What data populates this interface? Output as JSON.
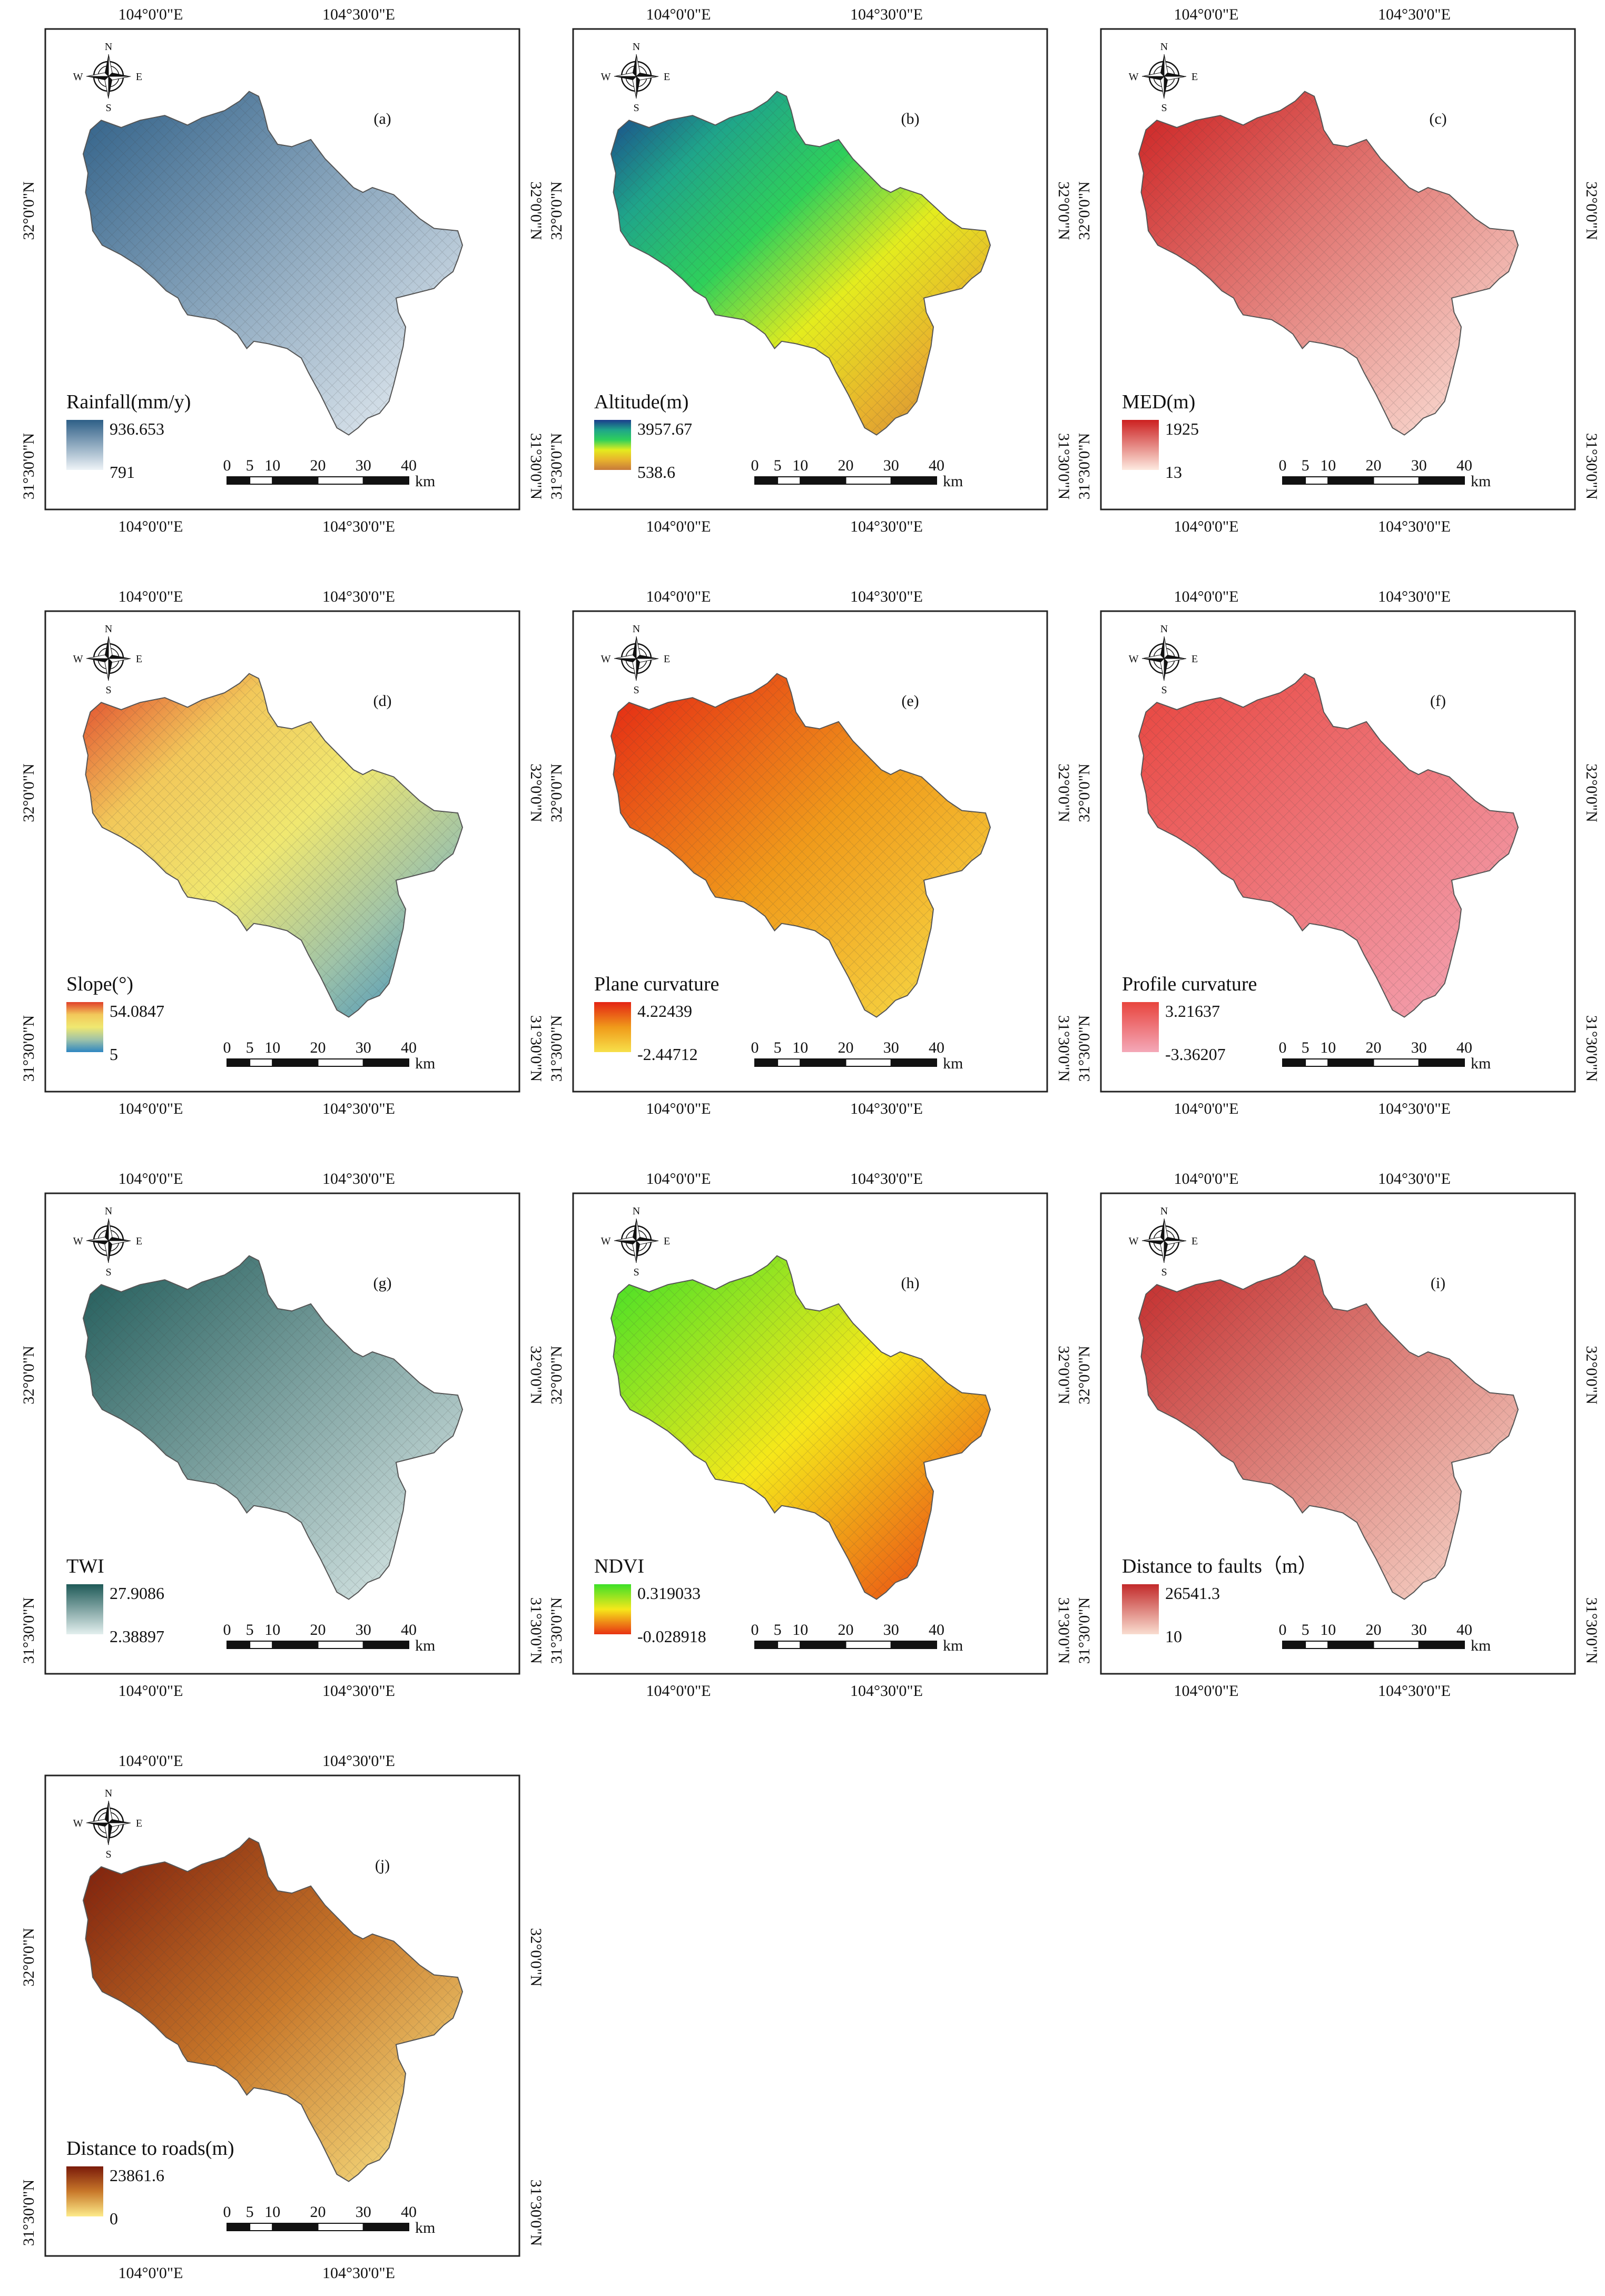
{
  "coord_labels": {
    "lon_left": "104°0'0\"E",
    "lon_right": "104°30'0\"E",
    "lat_top": "32°0'0\"N",
    "lat_bottom": "31°30'0\"N"
  },
  "compass": {
    "north": "N",
    "south": "S",
    "east": "E",
    "west": "W"
  },
  "scale_bar": {
    "ticks": [
      "0",
      "5",
      "10",
      "20",
      "30",
      "40"
    ],
    "unit": "km"
  },
  "panels": [
    {
      "letter": "(a)",
      "title": "Rainfall(mm/y)",
      "max": "936.653",
      "min": "791",
      "colors": [
        "#2e5f87",
        "#eef3f7"
      ]
    },
    {
      "letter": "(b)",
      "title": "Altitude(m)",
      "max": "3957.67",
      "min": "538.6",
      "colors": [
        "#1b3c8c",
        "#1fa58a",
        "#2fd05a",
        "#e4ec1e",
        "#e8b22d",
        "#c77a3a"
      ]
    },
    {
      "letter": "(c)",
      "title": "MED(m)",
      "max": "1925",
      "min": "13",
      "colors": [
        "#cc2020",
        "#fdeae0"
      ]
    },
    {
      "letter": "(d)",
      "title": "Slope(°)",
      "max": "54.0847",
      "min": "5",
      "colors": [
        "#e0402a",
        "#f2c85a",
        "#f0e870",
        "#9fc3a8",
        "#2e86c1"
      ]
    },
    {
      "letter": "(e)",
      "title": "Plane curvature",
      "max": "4.22439",
      "min": "-2.44712",
      "colors": [
        "#e42414",
        "#f09a1a",
        "#f7e04a"
      ]
    },
    {
      "letter": "(f)",
      "title": "Profile curvature",
      "max": "3.21637",
      "min": "-3.36207",
      "colors": [
        "#e8453e",
        "#f4a8b8"
      ]
    },
    {
      "letter": "(g)",
      "title": "TWI",
      "max": "27.9086",
      "min": "2.38897",
      "colors": [
        "#1f5a58",
        "#e3efee"
      ]
    },
    {
      "letter": "(h)",
      "title": "NDVI",
      "max": "0.319033",
      "min": "-0.028918",
      "colors": [
        "#3de028",
        "#f6e81a",
        "#e83212"
      ]
    },
    {
      "letter": "(i)",
      "title": "Distance to faults（m）",
      "max": "26541.3",
      "min": "10",
      "colors": [
        "#c22a2a",
        "#f9ddd0"
      ]
    },
    {
      "letter": "(j)",
      "title": "Distance to roads(m)",
      "max": "23861.6",
      "min": "0",
      "colors": [
        "#7a1a0a",
        "#c8782a",
        "#fdeb8a"
      ]
    }
  ]
}
